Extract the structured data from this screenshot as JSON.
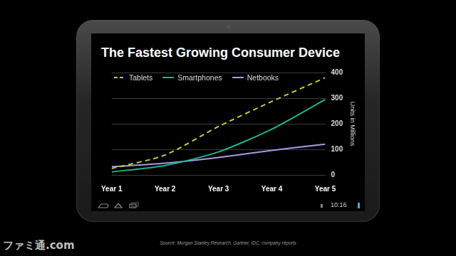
{
  "chart_data": {
    "type": "line",
    "title": "The Fastest Growing Consumer Device",
    "y_label": "Units in Millions",
    "categories": [
      "Year 1",
      "Year 2",
      "Year 3",
      "Year 4",
      "Year 5"
    ],
    "series": [
      {
        "name": "Tablets",
        "color": "#b4d235",
        "line_style": "dashed",
        "values": [
          25,
          78,
          189,
          287,
          380
        ]
      },
      {
        "name": "Smartphones",
        "color": "#1fb58f",
        "line_style": "solid",
        "values": [
          12,
          37,
          90,
          179,
          295
        ]
      },
      {
        "name": "Netbooks",
        "color": "#a99be0",
        "line_style": "solid",
        "values": [
          32,
          46,
          68,
          96,
          120
        ]
      }
    ],
    "ylim": [
      0,
      400
    ],
    "yticks": [
      0,
      100,
      200,
      300,
      400
    ],
    "grid": true,
    "legend": "top-left"
  },
  "page": {
    "source": "Source: Morgan Stanley Research, Gartner, IDC, company reports",
    "clock": "10:16",
    "watermark": "ファミ通.com"
  }
}
